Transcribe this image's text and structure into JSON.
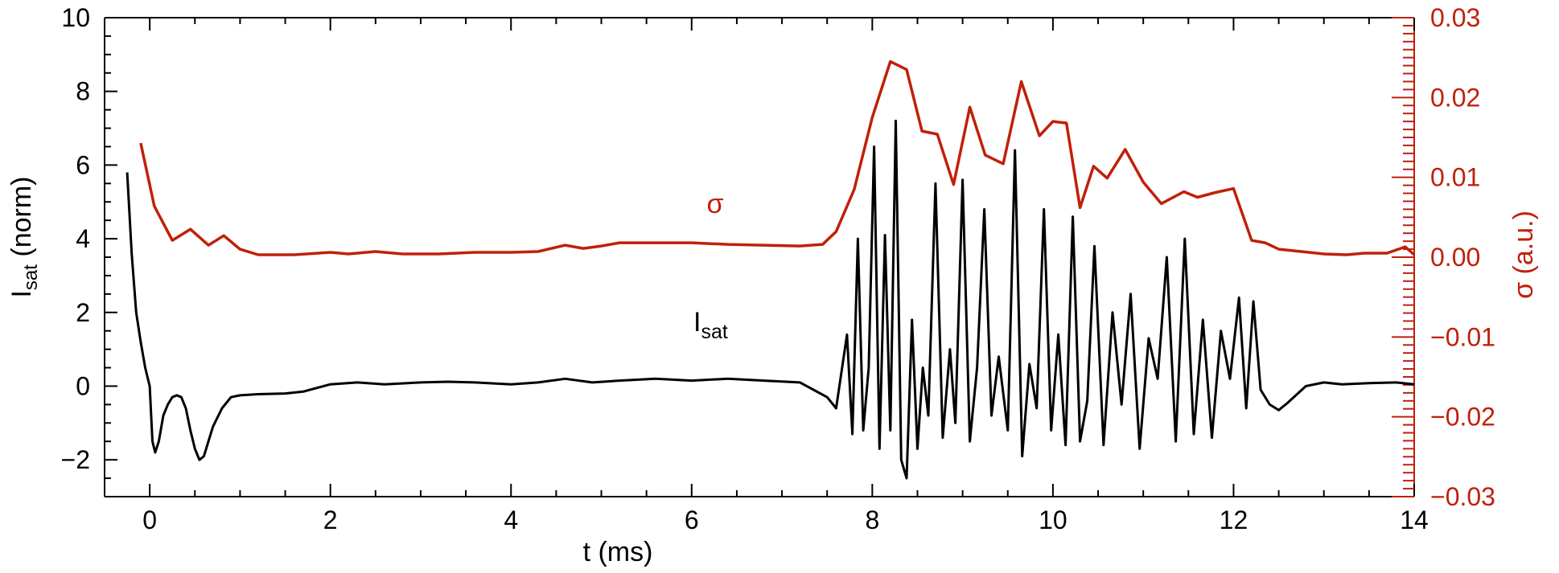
{
  "chart_data": {
    "type": "line",
    "xlabel": "t (ms)",
    "ylabel_main": "I",
    "ylabel_sub": "sat",
    "ylabel_tail": " (norm)",
    "y2label": "σ (a.u.)",
    "xlim": [
      -0.5,
      14
    ],
    "ylim": [
      -3,
      10
    ],
    "y2lim": [
      -0.03,
      0.03
    ],
    "x_ticks": [
      "0",
      "2",
      "4",
      "6",
      "8",
      "10",
      "12",
      "14"
    ],
    "y_ticks": [
      "−2",
      "0",
      "2",
      "4",
      "6",
      "8",
      "10"
    ],
    "y2_ticks": [
      "−0.03",
      "−0.02",
      "−0.01",
      "0.00",
      "0.01",
      "0.02",
      "0.03"
    ],
    "colors": {
      "isat": "#000000",
      "sigma": "#c0200a",
      "axes": "#000000"
    },
    "annotations": {
      "sigma_symbol": "σ",
      "isat_main": "I",
      "isat_sub": "sat"
    },
    "series": [
      {
        "name": "σ",
        "axis": "right",
        "x": [
          -0.1,
          0.05,
          0.25,
          0.45,
          0.65,
          0.82,
          1.0,
          1.2,
          1.6,
          2.0,
          2.2,
          2.5,
          2.8,
          3.2,
          3.6,
          4.0,
          4.3,
          4.6,
          4.8,
          5.0,
          5.2,
          5.6,
          6.0,
          6.4,
          6.8,
          7.2,
          7.45,
          7.6,
          7.8,
          8.0,
          8.2,
          8.38,
          8.55,
          8.72,
          8.9,
          9.08,
          9.25,
          9.45,
          9.65,
          9.85,
          10.0,
          10.15,
          10.3,
          10.45,
          10.6,
          10.8,
          11.0,
          11.2,
          11.45,
          11.6,
          11.8,
          12.0,
          12.2,
          12.35,
          12.5,
          12.75,
          13.0,
          13.25,
          13.45,
          13.7,
          13.9,
          14.0
        ],
        "values": [
          0.0143,
          0.0064,
          0.0021,
          0.0035,
          0.0015,
          0.0027,
          0.001,
          0.0003,
          0.0003,
          0.0006,
          0.0004,
          0.0007,
          0.0004,
          0.0004,
          0.0006,
          0.0006,
          0.0007,
          0.0015,
          0.0011,
          0.0014,
          0.0018,
          0.0018,
          0.0018,
          0.0016,
          0.0015,
          0.0014,
          0.0016,
          0.0032,
          0.0085,
          0.0175,
          0.0245,
          0.0235,
          0.0158,
          0.0154,
          0.0091,
          0.0188,
          0.0128,
          0.0117,
          0.022,
          0.0152,
          0.017,
          0.0168,
          0.0062,
          0.0114,
          0.0099,
          0.0135,
          0.0094,
          0.0067,
          0.0082,
          0.0075,
          0.0081,
          0.0086,
          0.0021,
          0.0018,
          0.001,
          0.0007,
          0.0004,
          0.0003,
          0.0005,
          0.0005,
          0.0013,
          0.0003
        ]
      },
      {
        "name": "I",
        "axis": "left",
        "x": [
          -0.25,
          -0.2,
          -0.15,
          -0.1,
          -0.05,
          0.0,
          0.03,
          0.06,
          0.1,
          0.15,
          0.2,
          0.25,
          0.3,
          0.35,
          0.4,
          0.45,
          0.5,
          0.55,
          0.6,
          0.65,
          0.7,
          0.8,
          0.9,
          1.0,
          1.2,
          1.5,
          1.7,
          2.0,
          2.3,
          2.6,
          3.0,
          3.3,
          3.6,
          4.0,
          4.3,
          4.6,
          4.9,
          5.2,
          5.6,
          6.0,
          6.4,
          6.8,
          7.2,
          7.5,
          7.6,
          7.72,
          7.78,
          7.84,
          7.9,
          7.96,
          8.02,
          8.08,
          8.14,
          8.2,
          8.26,
          8.32,
          8.38,
          8.44,
          8.5,
          8.56,
          8.62,
          8.7,
          8.78,
          8.86,
          8.92,
          9.0,
          9.08,
          9.16,
          9.24,
          9.32,
          9.4,
          9.5,
          9.58,
          9.66,
          9.74,
          9.82,
          9.9,
          9.98,
          10.06,
          10.14,
          10.22,
          10.3,
          10.38,
          10.46,
          10.56,
          10.66,
          10.76,
          10.86,
          10.96,
          11.06,
          11.16,
          11.26,
          11.36,
          11.46,
          11.56,
          11.66,
          11.76,
          11.86,
          11.96,
          12.06,
          12.14,
          12.22,
          12.3,
          12.4,
          12.5,
          12.6,
          12.8,
          13.0,
          13.2,
          13.5,
          13.8,
          14.0
        ],
        "values": [
          5.8,
          3.6,
          2.0,
          1.2,
          0.5,
          0.0,
          -1.5,
          -1.8,
          -1.5,
          -0.8,
          -0.5,
          -0.3,
          -0.25,
          -0.3,
          -0.6,
          -1.2,
          -1.7,
          -2.0,
          -1.9,
          -1.5,
          -1.1,
          -0.6,
          -0.3,
          -0.25,
          -0.22,
          -0.2,
          -0.15,
          0.05,
          0.1,
          0.05,
          0.1,
          0.12,
          0.1,
          0.05,
          0.1,
          0.2,
          0.1,
          0.15,
          0.2,
          0.15,
          0.2,
          0.15,
          0.1,
          -0.3,
          -0.6,
          1.4,
          -1.3,
          4.0,
          -1.2,
          0.5,
          6.5,
          -1.7,
          4.1,
          -1.2,
          7.2,
          -2.0,
          -2.5,
          1.8,
          -1.7,
          0.5,
          -0.8,
          5.5,
          -1.4,
          1.0,
          -1.0,
          5.6,
          -1.5,
          0.5,
          4.8,
          -0.8,
          0.8,
          -1.2,
          6.4,
          -1.9,
          0.6,
          -0.6,
          4.8,
          -1.2,
          1.4,
          -1.6,
          4.6,
          -1.5,
          -0.4,
          3.8,
          -1.6,
          2.0,
          -0.5,
          2.5,
          -1.7,
          1.3,
          0.2,
          3.5,
          -1.5,
          4.0,
          -1.3,
          1.8,
          -1.4,
          1.5,
          0.2,
          2.4,
          -0.6,
          2.3,
          -0.1,
          -0.5,
          -0.65,
          -0.45,
          0.0,
          0.1,
          0.05,
          0.08,
          0.1,
          0.05
        ]
      }
    ]
  }
}
